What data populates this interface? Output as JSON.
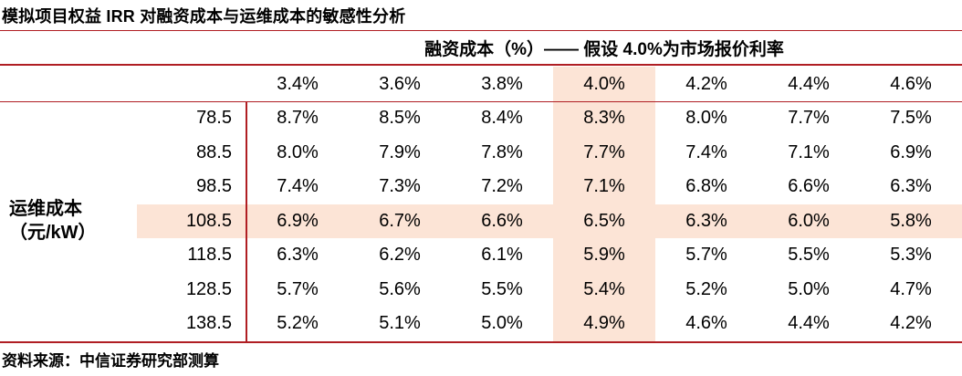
{
  "title": "模拟项目权益 IRR 对融资成本与运维成本的敏感性分析",
  "source_note": "资料来源：中信证券研究部测算",
  "colors": {
    "line_red": "#B01E23",
    "highlight": "#FCE4D6",
    "text": "#000000"
  },
  "table": {
    "col_axis_label": "融资成本（%）—— 假设 4.0%为市场报价利率",
    "row_axis_label": "运维成本\n（元/kW）",
    "col_headers": [
      "3.4%",
      "3.6%",
      "3.8%",
      "4.0%",
      "4.2%",
      "4.4%",
      "4.6%"
    ],
    "highlight_col_index": 3,
    "highlight_row_index": 3,
    "rows": [
      {
        "label": "78.5",
        "values": [
          "8.7%",
          "8.5%",
          "8.4%",
          "8.3%",
          "8.0%",
          "7.7%",
          "7.5%"
        ]
      },
      {
        "label": "88.5",
        "values": [
          "8.0%",
          "7.9%",
          "7.8%",
          "7.7%",
          "7.4%",
          "7.1%",
          "6.9%"
        ]
      },
      {
        "label": "98.5",
        "values": [
          "7.4%",
          "7.3%",
          "7.2%",
          "7.1%",
          "6.8%",
          "6.6%",
          "6.3%"
        ]
      },
      {
        "label": "108.5",
        "values": [
          "6.9%",
          "6.7%",
          "6.6%",
          "6.5%",
          "6.3%",
          "6.0%",
          "5.8%"
        ]
      },
      {
        "label": "118.5",
        "values": [
          "6.3%",
          "6.2%",
          "6.1%",
          "5.9%",
          "5.7%",
          "5.5%",
          "5.3%"
        ]
      },
      {
        "label": "128.5",
        "values": [
          "5.7%",
          "5.6%",
          "5.5%",
          "5.4%",
          "5.2%",
          "5.0%",
          "4.7%"
        ]
      },
      {
        "label": "138.5",
        "values": [
          "5.2%",
          "5.1%",
          "5.0%",
          "4.9%",
          "4.6%",
          "4.4%",
          "4.2%"
        ]
      }
    ]
  },
  "chart_data": {
    "type": "table",
    "title": "模拟项目权益 IRR 对融资成本与运维成本的敏感性分析",
    "x_axis_title": "融资成本（%）—— 假设 4.0%为市场报价利率",
    "y_axis_title": "运维成本（元/kW）",
    "columns": [
      3.4,
      3.6,
      3.8,
      4.0,
      4.2,
      4.4,
      4.6
    ],
    "row_categories": [
      78.5,
      88.5,
      98.5,
      108.5,
      118.5,
      128.5,
      138.5
    ],
    "values_pct": [
      [
        8.7,
        8.5,
        8.4,
        8.3,
        8.0,
        7.7,
        7.5
      ],
      [
        8.0,
        7.9,
        7.8,
        7.7,
        7.4,
        7.1,
        6.9
      ],
      [
        7.4,
        7.3,
        7.2,
        7.1,
        6.8,
        6.6,
        6.3
      ],
      [
        6.9,
        6.7,
        6.6,
        6.5,
        6.3,
        6.0,
        5.8
      ],
      [
        6.3,
        6.2,
        6.1,
        5.9,
        5.7,
        5.5,
        5.3
      ],
      [
        5.7,
        5.6,
        5.5,
        5.4,
        5.2,
        5.0,
        4.7
      ],
      [
        5.2,
        5.1,
        5.0,
        4.9,
        4.6,
        4.4,
        4.2
      ]
    ],
    "highlighted_column": 4.0,
    "highlighted_row": 108.5,
    "note": "资料来源：中信证券研究部测算"
  }
}
